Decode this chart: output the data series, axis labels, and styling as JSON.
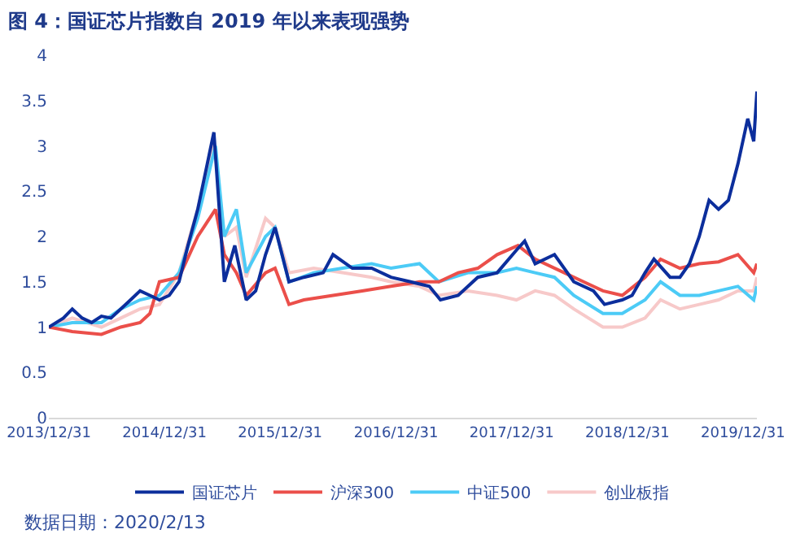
{
  "chart_data": {
    "type": "line",
    "title": "图 4：国证芯片指数自 2019 年以来表现强势",
    "annotations": [
      "数据日期：2020/2/13"
    ],
    "xlim": [
      "2013-12-31",
      "2020-02-13"
    ],
    "xticks": [
      {
        "value": "2013-12-31",
        "label": "2013/12/31"
      },
      {
        "value": "2014-12-31",
        "label": "2014/12/31"
      },
      {
        "value": "2015-12-31",
        "label": "2015/12/31"
      },
      {
        "value": "2016-12-31",
        "label": "2016/12/31"
      },
      {
        "value": "2017-12-31",
        "label": "2017/12/31"
      },
      {
        "value": "2018-12-31",
        "label": "2018/12/31"
      },
      {
        "value": "2019-12-31",
        "label": "2019/12/31"
      }
    ],
    "ylim": [
      0,
      4
    ],
    "yticks": [
      0,
      0.5,
      1,
      1.5,
      2,
      2.5,
      3,
      3.5,
      4
    ],
    "legend": "bottom",
    "marker": "none",
    "line_style": "solid",
    "series": [
      {
        "name": "国证芯片",
        "color": "#0c2e9c",
        "x": [
          "2013-12-31",
          "2014-02-15",
          "2014-03-15",
          "2014-04-15",
          "2014-05-15",
          "2014-06-15",
          "2014-07-15",
          "2014-08-15",
          "2014-09-15",
          "2014-10-15",
          "2014-11-15",
          "2014-12-15",
          "2015-01-15",
          "2015-02-15",
          "2015-03-15",
          "2015-04-15",
          "2015-05-15",
          "2015-06-05",
          "2015-07-08",
          "2015-08-10",
          "2015-09-15",
          "2015-10-15",
          "2015-11-15",
          "2015-12-15",
          "2016-01-28",
          "2016-03-15",
          "2016-05-15",
          "2016-06-15",
          "2016-08-15",
          "2016-10-15",
          "2016-12-15",
          "2017-02-15",
          "2017-04-15",
          "2017-05-20",
          "2017-07-15",
          "2017-09-15",
          "2017-11-15",
          "2018-01-15",
          "2018-02-10",
          "2018-03-15",
          "2018-05-15",
          "2018-07-15",
          "2018-09-15",
          "2018-10-20",
          "2018-12-15",
          "2019-01-15",
          "2019-02-25",
          "2019-03-25",
          "2019-05-15",
          "2019-06-15",
          "2019-07-15",
          "2019-08-15",
          "2019-09-15",
          "2019-10-15",
          "2019-11-15",
          "2019-12-15",
          "2020-01-15",
          "2020-02-03",
          "2020-02-13"
        ],
        "values": [
          1.0,
          1.1,
          1.2,
          1.1,
          1.05,
          1.12,
          1.1,
          1.2,
          1.3,
          1.4,
          1.35,
          1.3,
          1.35,
          1.5,
          1.9,
          2.3,
          2.8,
          3.15,
          1.5,
          1.9,
          1.3,
          1.4,
          1.8,
          2.1,
          1.5,
          1.55,
          1.6,
          1.8,
          1.65,
          1.65,
          1.55,
          1.5,
          1.45,
          1.3,
          1.35,
          1.55,
          1.6,
          1.85,
          1.95,
          1.7,
          1.8,
          1.5,
          1.4,
          1.25,
          1.3,
          1.35,
          1.6,
          1.75,
          1.55,
          1.55,
          1.7,
          2.0,
          2.4,
          2.3,
          2.4,
          2.8,
          3.3,
          3.05,
          3.6
        ]
      },
      {
        "name": "沪深300",
        "color": "#eb4f4a",
        "x": [
          "2013-12-31",
          "2014-03-15",
          "2014-06-15",
          "2014-08-15",
          "2014-10-15",
          "2014-11-15",
          "2014-12-15",
          "2015-02-15",
          "2015-04-15",
          "2015-06-10",
          "2015-07-08",
          "2015-08-15",
          "2015-09-15",
          "2015-11-15",
          "2015-12-15",
          "2016-01-28",
          "2016-03-15",
          "2016-06-15",
          "2016-09-15",
          "2016-12-15",
          "2017-03-15",
          "2017-05-15",
          "2017-07-15",
          "2017-09-15",
          "2017-11-15",
          "2018-01-20",
          "2018-03-15",
          "2018-06-15",
          "2018-08-15",
          "2018-10-15",
          "2018-12-15",
          "2019-02-25",
          "2019-04-15",
          "2019-06-15",
          "2019-08-15",
          "2019-10-15",
          "2019-12-15",
          "2020-02-03",
          "2020-02-13"
        ],
        "values": [
          1.0,
          0.95,
          0.92,
          1.0,
          1.05,
          1.15,
          1.5,
          1.55,
          2.0,
          2.3,
          1.8,
          1.6,
          1.35,
          1.6,
          1.65,
          1.25,
          1.3,
          1.35,
          1.4,
          1.45,
          1.5,
          1.5,
          1.6,
          1.65,
          1.8,
          1.9,
          1.75,
          1.6,
          1.5,
          1.4,
          1.35,
          1.55,
          1.75,
          1.65,
          1.7,
          1.72,
          1.8,
          1.6,
          1.7
        ]
      },
      {
        "name": "中证500",
        "color": "#4ccbf6",
        "x": [
          "2013-12-31",
          "2014-03-15",
          "2014-06-15",
          "2014-08-15",
          "2014-10-15",
          "2014-12-15",
          "2015-02-15",
          "2015-04-15",
          "2015-06-10",
          "2015-07-08",
          "2015-08-15",
          "2015-09-15",
          "2015-11-15",
          "2015-12-15",
          "2016-01-28",
          "2016-04-15",
          "2016-07-15",
          "2016-10-15",
          "2016-12-15",
          "2017-03-15",
          "2017-05-15",
          "2017-08-15",
          "2017-11-15",
          "2018-01-15",
          "2018-03-15",
          "2018-05-15",
          "2018-07-15",
          "2018-10-15",
          "2018-12-15",
          "2019-02-25",
          "2019-04-15",
          "2019-06-15",
          "2019-08-15",
          "2019-10-15",
          "2019-12-15",
          "2020-02-03",
          "2020-02-13"
        ],
        "values": [
          1.0,
          1.05,
          1.05,
          1.2,
          1.3,
          1.35,
          1.6,
          2.2,
          3.0,
          2.0,
          2.3,
          1.6,
          2.0,
          2.1,
          1.5,
          1.6,
          1.65,
          1.7,
          1.65,
          1.7,
          1.5,
          1.6,
          1.6,
          1.65,
          1.6,
          1.55,
          1.35,
          1.15,
          1.15,
          1.3,
          1.5,
          1.35,
          1.35,
          1.4,
          1.45,
          1.3,
          1.45
        ]
      },
      {
        "name": "创业板指",
        "color": "#f7c9c9",
        "x": [
          "2013-12-31",
          "2014-03-15",
          "2014-06-15",
          "2014-08-15",
          "2014-10-15",
          "2014-12-15",
          "2015-02-15",
          "2015-04-15",
          "2015-06-05",
          "2015-07-08",
          "2015-08-15",
          "2015-09-15",
          "2015-11-15",
          "2015-12-15",
          "2016-01-28",
          "2016-04-15",
          "2016-07-15",
          "2016-10-15",
          "2016-12-15",
          "2017-03-15",
          "2017-05-15",
          "2017-08-15",
          "2017-11-15",
          "2018-01-15",
          "2018-03-15",
          "2018-05-15",
          "2018-07-15",
          "2018-10-15",
          "2018-12-15",
          "2019-02-25",
          "2019-04-15",
          "2019-06-15",
          "2019-08-15",
          "2019-10-15",
          "2019-12-15",
          "2020-02-03",
          "2020-02-13"
        ],
        "values": [
          1.0,
          1.1,
          1.0,
          1.1,
          1.2,
          1.25,
          1.6,
          2.3,
          3.05,
          2.0,
          2.1,
          1.55,
          2.2,
          2.1,
          1.6,
          1.65,
          1.6,
          1.55,
          1.5,
          1.45,
          1.35,
          1.4,
          1.35,
          1.3,
          1.4,
          1.35,
          1.2,
          1.0,
          1.0,
          1.1,
          1.3,
          1.2,
          1.25,
          1.3,
          1.4,
          1.4,
          1.55
        ]
      }
    ]
  }
}
